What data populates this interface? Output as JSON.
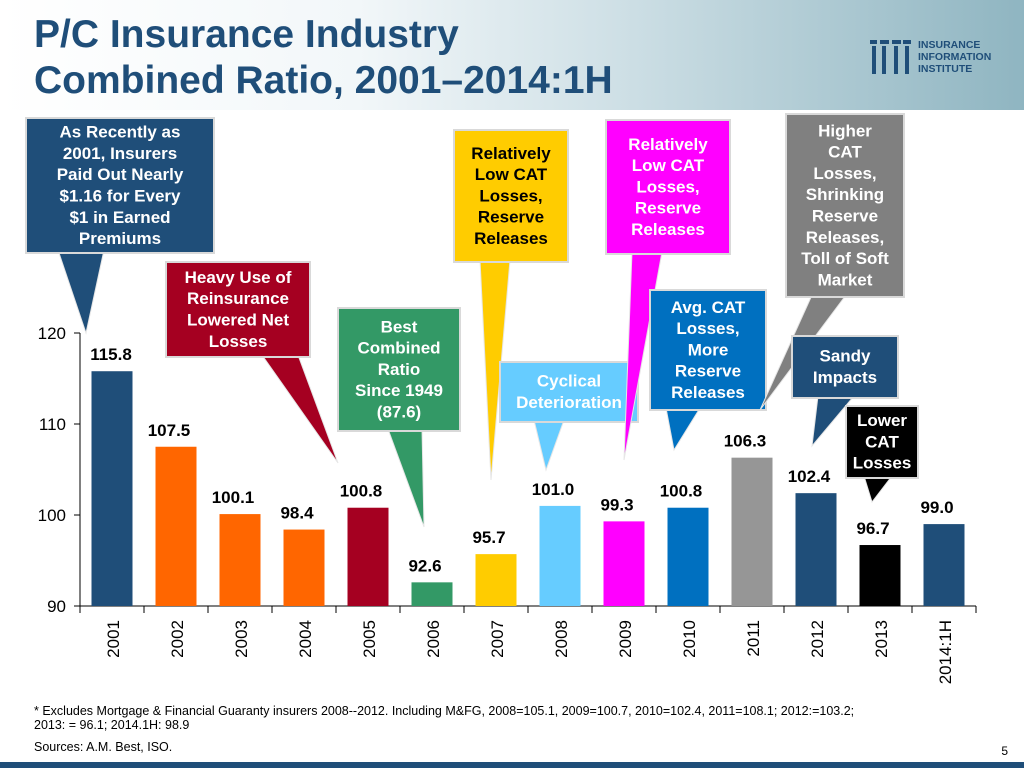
{
  "title_line1": "P/C Insurance Industry",
  "title_line2": "Combined Ratio, 2001–2014:1H",
  "logo": {
    "line1": "INSURANCE",
    "line2": "INFORMATION",
    "line3": "INSTITUTE"
  },
  "chart_data": {
    "type": "bar",
    "title": "P/C Insurance Industry Combined Ratio, 2001–2014:1H",
    "categories": [
      "2001",
      "2002",
      "2003",
      "2004",
      "2005",
      "2006",
      "2007",
      "2008",
      "2009",
      "2010",
      "2011",
      "2012",
      "2013",
      "2014:1H"
    ],
    "values": [
      115.8,
      107.5,
      100.1,
      98.4,
      100.8,
      92.6,
      95.7,
      101.0,
      99.3,
      100.8,
      106.3,
      102.4,
      96.7,
      99.0
    ],
    "labels": [
      "115.8",
      "107.5",
      "100.1",
      "98.4",
      "100.8",
      "92.6",
      "95.7",
      "101.0",
      "99.3",
      "100.8",
      "106.3",
      "102.4",
      "96.7",
      "99.0"
    ],
    "colors": [
      "#1f4e79",
      "#ff6600",
      "#ff6600",
      "#ff6600",
      "#a50021",
      "#339966",
      "#ffcc00",
      "#66ccff",
      "#ff00ff",
      "#0070c0",
      "#969696",
      "#1f4e79",
      "#000000",
      "#1f4e79"
    ],
    "yticks": [
      90,
      100,
      110,
      120
    ],
    "ylim": [
      90,
      120
    ],
    "xlabel": "",
    "ylabel": ""
  },
  "callouts": [
    {
      "lines": [
        "As Recently as",
        "2001, Insurers",
        "Paid Out Nearly",
        "$1.16 for Every",
        "$1 in Earned",
        "Premiums"
      ],
      "bg": "#1f4e79",
      "text": "#ffffff"
    },
    {
      "lines": [
        "Heavy Use of",
        "Reinsurance",
        "Lowered Net",
        "Losses"
      ],
      "bg": "#a50021",
      "text": "#ffffff"
    },
    {
      "lines": [
        "Best",
        "Combined",
        "Ratio",
        "Since 1949",
        "(87.6)"
      ],
      "bg": "#339966",
      "text": "#ffffff"
    },
    {
      "lines": [
        "Relatively",
        "Low CAT",
        "Losses,",
        "Reserve",
        "Releases"
      ],
      "bg": "#ffcc00",
      "text": "#000000"
    },
    {
      "lines": [
        "Cyclical",
        "Deterioration"
      ],
      "bg": "#66ccff",
      "text": "#ffffff"
    },
    {
      "lines": [
        "Relatively",
        "Low CAT",
        "Losses,",
        "Reserve",
        "Releases"
      ],
      "bg": "#ff00ff",
      "text": "#ffffff"
    },
    {
      "lines": [
        "Avg. CAT",
        "Losses,",
        "More",
        "Reserve",
        "Releases"
      ],
      "bg": "#0070c0",
      "text": "#ffffff"
    },
    {
      "lines": [
        "Higher",
        "CAT",
        "Losses,",
        "Shrinking",
        "Reserve",
        "Releases,",
        "Toll of Soft",
        "Market"
      ],
      "bg": "#808080",
      "text": "#ffffff"
    },
    {
      "lines": [
        "Sandy",
        "Impacts"
      ],
      "bg": "#1f4e79",
      "text": "#ffffff"
    },
    {
      "lines": [
        "Lower",
        "CAT",
        "Losses"
      ],
      "bg": "#000000",
      "text": "#ffffff"
    }
  ],
  "footnote_line1": "* Excludes Mortgage & Financial Guaranty insurers 2008--2012. Including M&FG, 2008=105.1, 2009=100.7, 2010=102.4, 2011=108.1; 2012:=103.2;",
  "footnote_line2": "2013: = 96.1; 2014.1H: 98.9",
  "sources": "Sources: A.M. Best, ISO.",
  "page_number": "5"
}
